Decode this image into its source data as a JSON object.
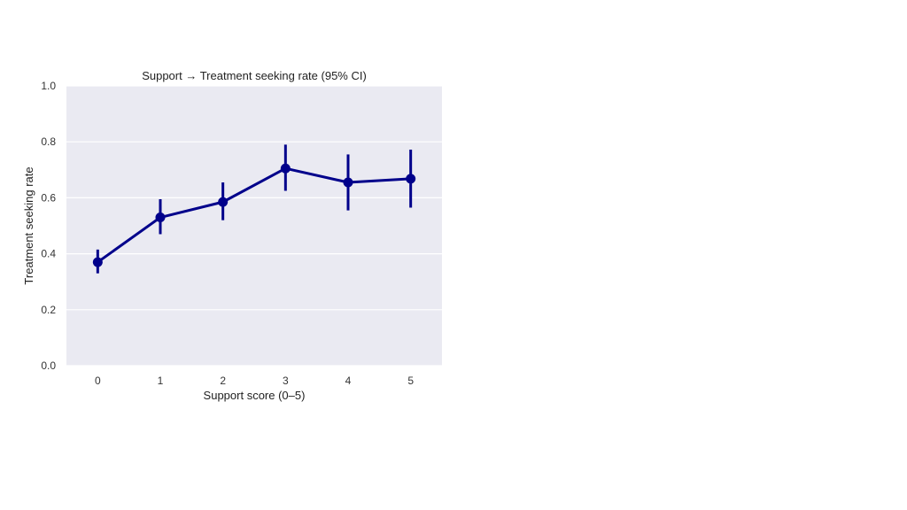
{
  "chart_data": {
    "type": "line",
    "title": "Support → Treatment seeking rate (95% CI)",
    "xlabel": "Support score (0–5)",
    "ylabel": "Treatment seeking rate",
    "categories": [
      "0",
      "1",
      "2",
      "3",
      "4",
      "5"
    ],
    "series": [
      {
        "values": [
          0.37,
          0.53,
          0.585,
          0.705,
          0.655,
          0.668
        ],
        "ci_low": [
          0.33,
          0.47,
          0.52,
          0.625,
          0.555,
          0.565
        ],
        "ci_high": [
          0.415,
          0.595,
          0.655,
          0.79,
          0.755,
          0.772
        ],
        "color": "#00008b"
      }
    ],
    "ylim": [
      0,
      1.0
    ],
    "yticks": [
      "0.0",
      "0.2",
      "0.4",
      "0.6",
      "0.8",
      "1.0"
    ],
    "grid": true,
    "plot_background": "#eaeaf2",
    "grid_color": "#ffffff"
  }
}
